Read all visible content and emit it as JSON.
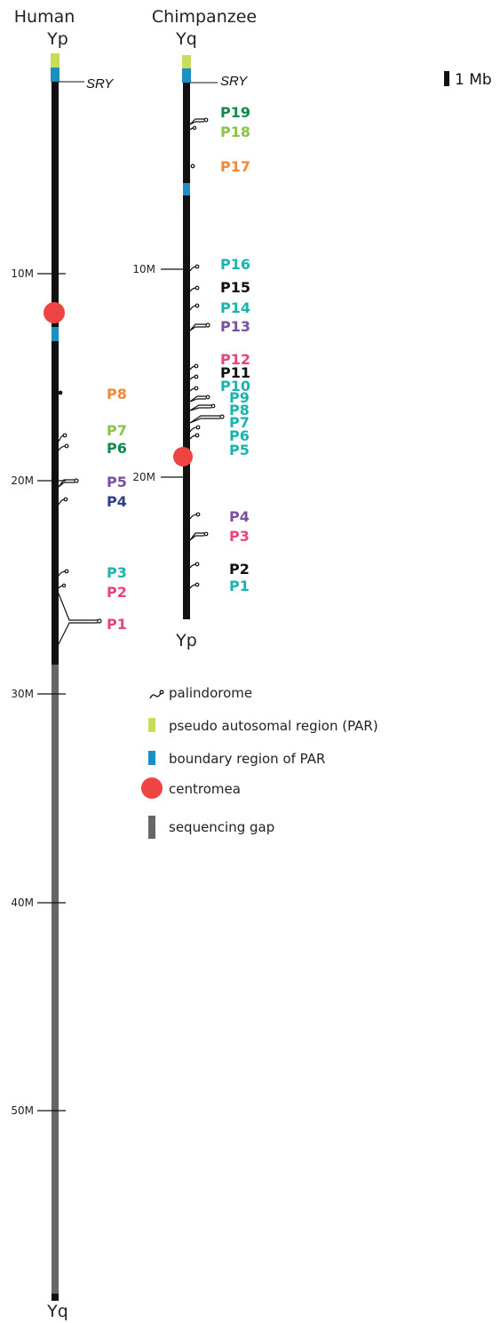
{
  "human": {
    "title": "Human",
    "top_label": "Yp",
    "bottom_label": "Yq",
    "sry_label": "SRY",
    "ticks": [
      "10M",
      "20M",
      "30M",
      "40M",
      "50M"
    ],
    "palindromes": [
      {
        "label": "P8",
        "color": "#F0883A"
      },
      {
        "label": "P7",
        "color": "#8BC34A"
      },
      {
        "label": "P6",
        "color": "#0E8A4A"
      },
      {
        "label": "P5",
        "color": "#7A4EA0"
      },
      {
        "label": "P4",
        "color": "#2D3E8C"
      },
      {
        "label": "P3",
        "color": "#1BB3AE"
      },
      {
        "label": "P2",
        "color": "#E8447A"
      },
      {
        "label": "P1",
        "color": "#E8447A"
      }
    ]
  },
  "chimpanzee": {
    "title": "Chimpanzee",
    "top_label": "Yq",
    "bottom_label": "Yp",
    "sry_label": "SRY",
    "ticks": [
      "10M",
      "20M"
    ],
    "palindromes": [
      {
        "label": "P19",
        "color": "#0E8A4A"
      },
      {
        "label": "P18",
        "color": "#8BC34A"
      },
      {
        "label": "P17",
        "color": "#F0883A"
      },
      {
        "label": "P16",
        "color": "#1BB3AE"
      },
      {
        "label": "P15",
        "color": "#111111"
      },
      {
        "label": "P14",
        "color": "#1BB3AE"
      },
      {
        "label": "P13",
        "color": "#7A4EA0"
      },
      {
        "label": "P12",
        "color": "#E8447A"
      },
      {
        "label": "P11",
        "color": "#111111"
      },
      {
        "label": "P10",
        "color": "#1BB3AE"
      },
      {
        "label": "P9",
        "color": "#1BB3AE"
      },
      {
        "label": "P8",
        "color": "#1BB3AE"
      },
      {
        "label": "P7",
        "color": "#1BB3AE"
      },
      {
        "label": "P6",
        "color": "#1BB3AE"
      },
      {
        "label": "P5",
        "color": "#1BB3AE"
      },
      {
        "label": "P4",
        "color": "#7A4EA0"
      },
      {
        "label": "P3",
        "color": "#E8447A"
      },
      {
        "label": "P2",
        "color": "#111111"
      },
      {
        "label": "P1",
        "color": "#1BB3AE"
      }
    ]
  },
  "scale_bar": {
    "label": "1 Mb"
  },
  "legend": {
    "items": [
      {
        "label": "palindorome",
        "icon": "palindrome-icon"
      },
      {
        "label": "pseudo autosomal region (PAR)",
        "icon": "par-swatch",
        "color": "#C8DC5A"
      },
      {
        "label": "boundary region of PAR",
        "icon": "boundary-swatch",
        "color": "#1A8FC0"
      },
      {
        "label": "centromea",
        "icon": "centromere-dot",
        "color": "#EF4444"
      },
      {
        "label": "sequencing gap",
        "icon": "gap-swatch",
        "color": "#666666"
      }
    ]
  },
  "colors": {
    "chromosome": "#111111",
    "par": "#C8DC5A",
    "boundary": "#1A8FC0",
    "centromere": "#EF4444",
    "gap": "#666666"
  }
}
